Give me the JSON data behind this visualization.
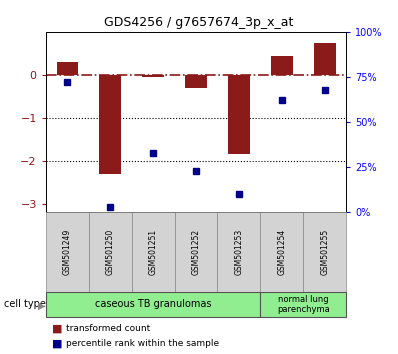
{
  "title": "GDS4256 / g7657674_3p_x_at",
  "samples": [
    "GSM501249",
    "GSM501250",
    "GSM501251",
    "GSM501252",
    "GSM501253",
    "GSM501254",
    "GSM501255"
  ],
  "transformed_count": [
    0.3,
    -2.3,
    -0.05,
    -0.3,
    -1.85,
    0.45,
    0.75
  ],
  "percentile_rank": [
    72,
    3,
    33,
    23,
    10,
    62,
    68
  ],
  "ylim_left": [
    -3.2,
    1.0
  ],
  "ylim_right": [
    0,
    100
  ],
  "yticks_left": [
    0,
    -1,
    -2,
    -3
  ],
  "yticks_right": [
    0,
    25,
    50,
    75,
    100
  ],
  "ytick_labels_right": [
    "0%",
    "25%",
    "50%",
    "75%",
    "100%"
  ],
  "bar_color": "#8B1A1A",
  "dot_color": "#00008B",
  "group1_label": "caseous TB granulomas",
  "group1_samples": [
    0,
    1,
    2,
    3,
    4
  ],
  "group2_label": "normal lung\nparenchyma",
  "group2_samples": [
    5,
    6
  ],
  "group1_color": "#90EE90",
  "group2_color": "#90EE90",
  "legend_bar_label": "transformed count",
  "legend_dot_label": "percentile rank within the sample",
  "bar_width": 0.5,
  "background_color": "#ffffff",
  "cell_type_label": "cell type"
}
